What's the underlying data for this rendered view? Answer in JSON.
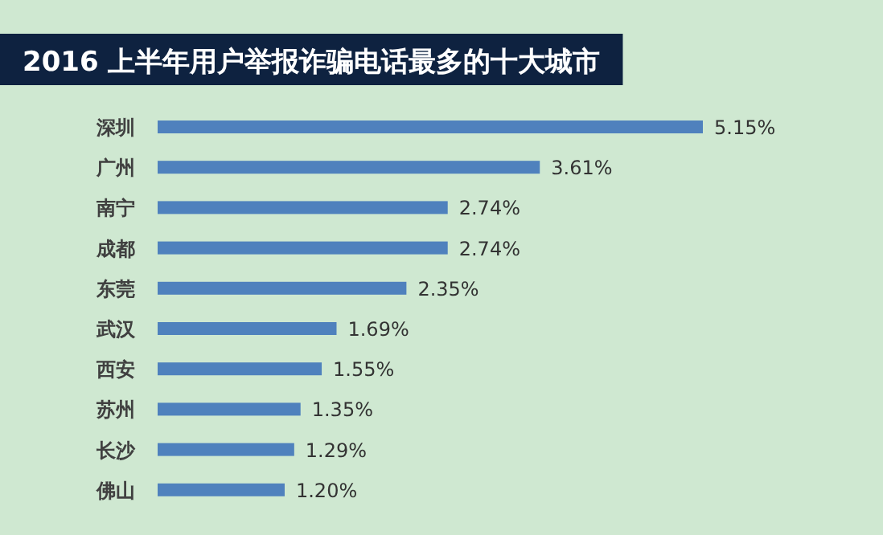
{
  "chart_data": {
    "type": "bar",
    "orientation": "horizontal",
    "title": "2016 上半年用户举报诈骗电话最多的十大城市",
    "categories": [
      "深圳",
      "广州",
      "南宁",
      "成都",
      "东莞",
      "武汉",
      "西安",
      "苏州",
      "长沙",
      "佛山"
    ],
    "values": [
      5.15,
      3.61,
      2.74,
      2.74,
      2.35,
      1.69,
      1.55,
      1.35,
      1.29,
      1.2
    ],
    "value_labels": [
      "5.15%",
      "3.61%",
      "2.74%",
      "2.74%",
      "2.35%",
      "1.69%",
      "1.55%",
      "1.35%",
      "1.29%",
      "1.20%"
    ],
    "color": "#4f81bd"
  }
}
